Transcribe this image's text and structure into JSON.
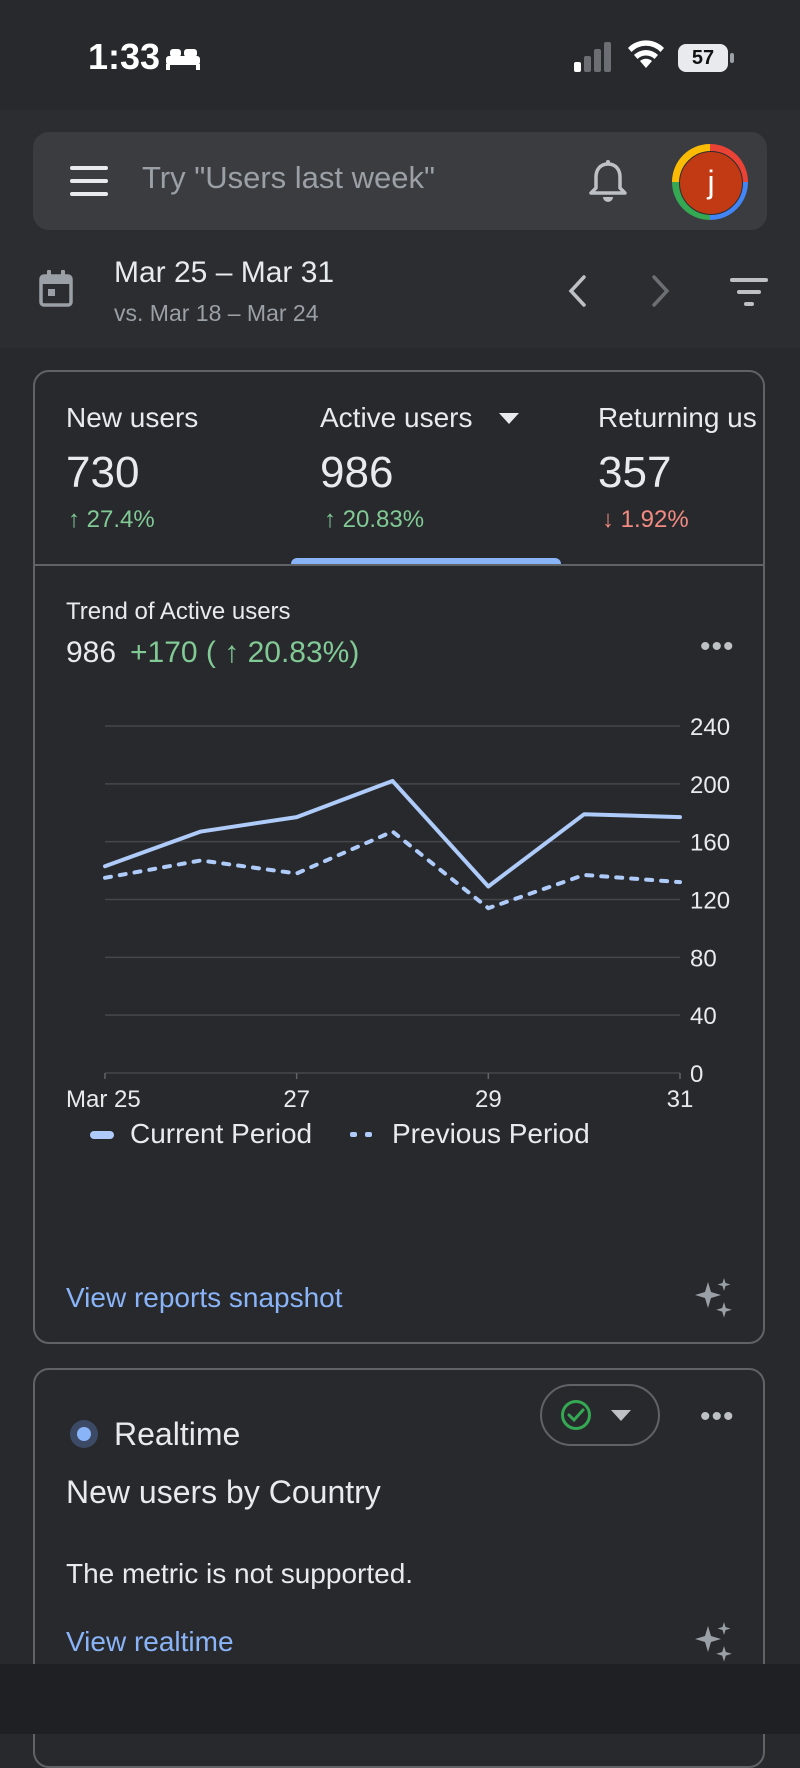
{
  "status_bar": {
    "time": "1:33",
    "battery": "57"
  },
  "search": {
    "placeholder": "Try \"Users last week\""
  },
  "account": {
    "avatar_letter": "j"
  },
  "date": {
    "range": "Mar 25 – Mar 31",
    "compare": "vs. Mar 18 – Mar 24"
  },
  "metrics": [
    {
      "label": "New users",
      "value": "730",
      "delta": "↑ 27.4%",
      "trend": "up"
    },
    {
      "label": "Active users",
      "value": "986",
      "delta": "↑ 20.83%",
      "trend": "up",
      "selected": true
    },
    {
      "label": "Returning us",
      "value": "357",
      "delta": "↓ 1.92%",
      "trend": "down"
    }
  ],
  "trend": {
    "title": "Trend of Active users",
    "value": "986",
    "delta": "+170 ( ↑ 20.83%)"
  },
  "chart_data": {
    "type": "line",
    "x": [
      "Mar 25",
      "26",
      "27",
      "28",
      "29",
      "30",
      "31"
    ],
    "x_tick_labels": [
      "Mar 25",
      "27",
      "29",
      "31"
    ],
    "y_ticks": [
      "240",
      "200",
      "160",
      "120",
      "80",
      "40",
      "0"
    ],
    "ylim": [
      0,
      240
    ],
    "series": [
      {
        "name": "Current Period",
        "values": [
          143,
          167,
          177,
          202,
          129,
          179,
          177
        ],
        "style": "solid"
      },
      {
        "name": "Previous Period",
        "values": [
          135,
          147,
          138,
          167,
          114,
          137,
          132
        ],
        "style": "dotted"
      }
    ],
    "colors": {
      "current": "#aecbfa",
      "previous": "#aecbfa",
      "grid": "#44474b"
    }
  },
  "card_actions": {
    "snapshot_link": "View reports snapshot"
  },
  "realtime": {
    "label": "Realtime",
    "title": "New users by Country",
    "message": "The metric is not supported.",
    "link": "View realtime"
  },
  "colors": {
    "accent": "#8ab4f8",
    "positive": "#81c995",
    "negative": "#f28b82"
  }
}
